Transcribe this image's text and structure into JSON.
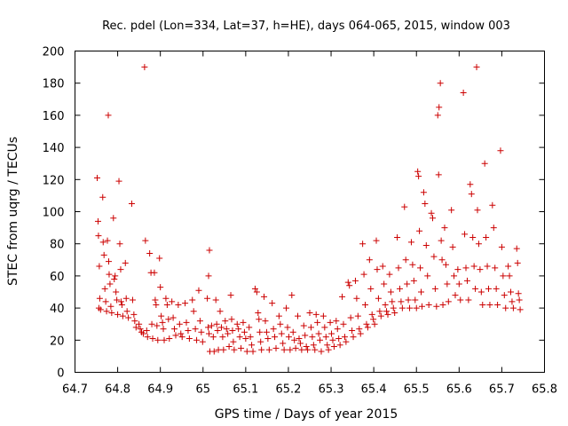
{
  "chart_data": {
    "type": "scatter",
    "title": "Rec. pdel (Lon=334, Lat=37, h=HE), days 064-065, 2015, window 003",
    "xlabel": "GPS time / Days of year 2015",
    "ylabel": "STEC from uqrg / TECUs",
    "xlim": [
      64.7,
      65.8
    ],
    "ylim": [
      0,
      200
    ],
    "xticks": [
      "64.7",
      "64.8",
      "64.9",
      "65",
      "65.1",
      "65.2",
      "65.3",
      "65.4",
      "65.5",
      "65.6",
      "65.7",
      "65.8"
    ],
    "yticks": [
      "0",
      "20",
      "40",
      "60",
      "80",
      "100",
      "120",
      "140",
      "160",
      "180",
      "200"
    ],
    "grid": false,
    "marker": "plus",
    "color": "#cc0000",
    "series": [
      {
        "values": [
          [
            64.752,
            121
          ],
          [
            64.754,
            94
          ],
          [
            64.755,
            85
          ],
          [
            64.757,
            66
          ],
          [
            64.758,
            46
          ],
          [
            64.756,
            40
          ],
          [
            64.76,
            39
          ],
          [
            64.765,
            109
          ],
          [
            64.766,
            81
          ],
          [
            64.768,
            73
          ],
          [
            64.77,
            52
          ],
          [
            64.772,
            44
          ],
          [
            64.774,
            38
          ],
          [
            64.778,
            160
          ],
          [
            64.776,
            82
          ],
          [
            64.779,
            69
          ],
          [
            64.78,
            61
          ],
          [
            64.782,
            55
          ],
          [
            64.784,
            41
          ],
          [
            64.786,
            37
          ],
          [
            64.79,
            96
          ],
          [
            64.792,
            58
          ],
          [
            64.794,
            60
          ],
          [
            64.796,
            50
          ],
          [
            64.798,
            45
          ],
          [
            64.8,
            36
          ],
          [
            64.803,
            119
          ],
          [
            64.805,
            80
          ],
          [
            64.807,
            64
          ],
          [
            64.808,
            44
          ],
          [
            64.81,
            42
          ],
          [
            64.812,
            35
          ],
          [
            64.818,
            68
          ],
          [
            64.82,
            46
          ],
          [
            64.822,
            38
          ],
          [
            64.825,
            34
          ],
          [
            64.833,
            105
          ],
          [
            64.835,
            45
          ],
          [
            64.838,
            36
          ],
          [
            64.84,
            32
          ],
          [
            64.843,
            28
          ],
          [
            64.85,
            30
          ],
          [
            64.853,
            27
          ],
          [
            64.856,
            25
          ],
          [
            64.86,
            24
          ],
          [
            64.863,
            190
          ],
          [
            64.865,
            82
          ],
          [
            64.868,
            26
          ],
          [
            64.87,
            22
          ],
          [
            64.875,
            74
          ],
          [
            64.878,
            62
          ],
          [
            64.88,
            30
          ],
          [
            64.882,
            21
          ],
          [
            64.886,
            62
          ],
          [
            64.888,
            45
          ],
          [
            64.89,
            42
          ],
          [
            64.892,
            29
          ],
          [
            64.894,
            20
          ],
          [
            64.898,
            71
          ],
          [
            64.9,
            53
          ],
          [
            64.902,
            35
          ],
          [
            64.905,
            31
          ],
          [
            64.907,
            27
          ],
          [
            64.909,
            20
          ],
          [
            64.913,
            46
          ],
          [
            64.916,
            42
          ],
          [
            64.919,
            33
          ],
          [
            64.921,
            21
          ],
          [
            64.927,
            44
          ],
          [
            64.93,
            34
          ],
          [
            64.933,
            27
          ],
          [
            64.936,
            23
          ],
          [
            64.942,
            42
          ],
          [
            64.945,
            30
          ],
          [
            64.948,
            24
          ],
          [
            64.951,
            22
          ],
          [
            64.958,
            43
          ],
          [
            64.961,
            31
          ],
          [
            64.965,
            26
          ],
          [
            64.968,
            21
          ],
          [
            64.975,
            45
          ],
          [
            64.978,
            38
          ],
          [
            64.982,
            27
          ],
          [
            64.985,
            20
          ],
          [
            64.99,
            51
          ],
          [
            64.993,
            32
          ],
          [
            64.996,
            25
          ],
          [
            64.999,
            19
          ],
          [
            65.015,
            76
          ],
          [
            65.013,
            60
          ],
          [
            65.01,
            46
          ],
          [
            65.012,
            28
          ],
          [
            65.014,
            24
          ],
          [
            65.016,
            13
          ],
          [
            65.02,
            29
          ],
          [
            65.024,
            22
          ],
          [
            65.026,
            13
          ],
          [
            65.03,
            45
          ],
          [
            65.032,
            30
          ],
          [
            65.034,
            26
          ],
          [
            65.036,
            14
          ],
          [
            65.04,
            38
          ],
          [
            65.043,
            28
          ],
          [
            65.046,
            22
          ],
          [
            65.048,
            14
          ],
          [
            65.052,
            32
          ],
          [
            65.055,
            27
          ],
          [
            65.058,
            24
          ],
          [
            65.061,
            16
          ],
          [
            65.065,
            48
          ],
          [
            65.067,
            33
          ],
          [
            65.069,
            26
          ],
          [
            65.071,
            19
          ],
          [
            65.073,
            14
          ],
          [
            65.08,
            30
          ],
          [
            65.083,
            27
          ],
          [
            65.086,
            22
          ],
          [
            65.089,
            15
          ],
          [
            65.094,
            31
          ],
          [
            65.097,
            25
          ],
          [
            65.1,
            21
          ],
          [
            65.103,
            13
          ],
          [
            65.108,
            28
          ],
          [
            65.111,
            22
          ],
          [
            65.114,
            17
          ],
          [
            65.117,
            13
          ],
          [
            65.122,
            52
          ],
          [
            65.126,
            50
          ],
          [
            65.129,
            37
          ],
          [
            65.131,
            33
          ],
          [
            65.133,
            25
          ],
          [
            65.135,
            19
          ],
          [
            65.137,
            14
          ],
          [
            65.143,
            47
          ],
          [
            65.146,
            32
          ],
          [
            65.149,
            25
          ],
          [
            65.152,
            21
          ],
          [
            65.155,
            14
          ],
          [
            65.162,
            43
          ],
          [
            65.165,
            27
          ],
          [
            65.168,
            22
          ],
          [
            65.171,
            15
          ],
          [
            65.178,
            35
          ],
          [
            65.181,
            30
          ],
          [
            65.184,
            24
          ],
          [
            65.187,
            18
          ],
          [
            65.19,
            14
          ],
          [
            65.195,
            40
          ],
          [
            65.198,
            28
          ],
          [
            65.201,
            22
          ],
          [
            65.204,
            14
          ],
          [
            65.208,
            48
          ],
          [
            65.211,
            25
          ],
          [
            65.214,
            20
          ],
          [
            65.217,
            15
          ],
          [
            65.222,
            35
          ],
          [
            65.225,
            21
          ],
          [
            65.228,
            18
          ],
          [
            65.231,
            14
          ],
          [
            65.236,
            29
          ],
          [
            65.239,
            23
          ],
          [
            65.242,
            16
          ],
          [
            65.245,
            14
          ],
          [
            65.25,
            37
          ],
          [
            65.253,
            28
          ],
          [
            65.256,
            22
          ],
          [
            65.259,
            17
          ],
          [
            65.262,
            14
          ],
          [
            65.265,
            36
          ],
          [
            65.268,
            31
          ],
          [
            65.271,
            24
          ],
          [
            65.274,
            20
          ],
          [
            65.277,
            13
          ],
          [
            65.282,
            35
          ],
          [
            65.285,
            28
          ],
          [
            65.288,
            22
          ],
          [
            65.291,
            17
          ],
          [
            65.294,
            14
          ],
          [
            65.298,
            31
          ],
          [
            65.301,
            24
          ],
          [
            65.304,
            20
          ],
          [
            65.307,
            16
          ],
          [
            65.312,
            32
          ],
          [
            65.315,
            27
          ],
          [
            65.318,
            21
          ],
          [
            65.321,
            17
          ],
          [
            65.326,
            47
          ],
          [
            65.329,
            30
          ],
          [
            65.332,
            22
          ],
          [
            65.335,
            19
          ],
          [
            65.34,
            56
          ],
          [
            65.343,
            54
          ],
          [
            65.346,
            34
          ],
          [
            65.349,
            26
          ],
          [
            65.352,
            22
          ],
          [
            65.357,
            57
          ],
          [
            65.36,
            46
          ],
          [
            65.363,
            35
          ],
          [
            65.366,
            27
          ],
          [
            65.369,
            24
          ],
          [
            65.374,
            80
          ],
          [
            65.377,
            61
          ],
          [
            65.38,
            42
          ],
          [
            65.383,
            30
          ],
          [
            65.386,
            28
          ],
          [
            65.39,
            70
          ],
          [
            65.393,
            52
          ],
          [
            65.396,
            36
          ],
          [
            65.399,
            33
          ],
          [
            65.402,
            30
          ],
          [
            65.406,
            82
          ],
          [
            65.408,
            64
          ],
          [
            65.411,
            46
          ],
          [
            65.414,
            38
          ],
          [
            65.417,
            35
          ],
          [
            65.421,
            66
          ],
          [
            65.424,
            55
          ],
          [
            65.427,
            42
          ],
          [
            65.43,
            38
          ],
          [
            65.433,
            36
          ],
          [
            65.437,
            61
          ],
          [
            65.44,
            50
          ],
          [
            65.443,
            44
          ],
          [
            65.446,
            40
          ],
          [
            65.449,
            37
          ],
          [
            65.455,
            84
          ],
          [
            65.458,
            65
          ],
          [
            65.461,
            52
          ],
          [
            65.464,
            44
          ],
          [
            65.467,
            40
          ],
          [
            65.472,
            103
          ],
          [
            65.475,
            70
          ],
          [
            65.478,
            55
          ],
          [
            65.481,
            45
          ],
          [
            65.484,
            40
          ],
          [
            65.488,
            81
          ],
          [
            65.491,
            67
          ],
          [
            65.494,
            57
          ],
          [
            65.497,
            45
          ],
          [
            65.5,
            40
          ],
          [
            65.503,
            125
          ],
          [
            65.505,
            122
          ],
          [
            65.507,
            88
          ],
          [
            65.509,
            65
          ],
          [
            65.511,
            50
          ],
          [
            65.513,
            41
          ],
          [
            65.517,
            112
          ],
          [
            65.52,
            105
          ],
          [
            65.523,
            79
          ],
          [
            65.526,
            60
          ],
          [
            65.529,
            42
          ],
          [
            65.535,
            99
          ],
          [
            65.538,
            96
          ],
          [
            65.541,
            72
          ],
          [
            65.544,
            52
          ],
          [
            65.547,
            41
          ],
          [
            65.55,
            160
          ],
          [
            65.553,
            165
          ],
          [
            65.556,
            180
          ],
          [
            65.552,
            123
          ],
          [
            65.558,
            82
          ],
          [
            65.56,
            70
          ],
          [
            65.562,
            42
          ],
          [
            65.566,
            90
          ],
          [
            65.569,
            67
          ],
          [
            65.572,
            55
          ],
          [
            65.575,
            44
          ],
          [
            65.582,
            101
          ],
          [
            65.585,
            78
          ],
          [
            65.588,
            60
          ],
          [
            65.591,
            48
          ],
          [
            65.597,
            64
          ],
          [
            65.6,
            55
          ],
          [
            65.603,
            45
          ],
          [
            65.61,
            174
          ],
          [
            65.613,
            86
          ],
          [
            65.616,
            65
          ],
          [
            65.619,
            57
          ],
          [
            65.622,
            45
          ],
          [
            65.626,
            117
          ],
          [
            65.629,
            111
          ],
          [
            65.632,
            84
          ],
          [
            65.635,
            66
          ],
          [
            65.638,
            52
          ],
          [
            65.641,
            190
          ],
          [
            65.643,
            101
          ],
          [
            65.646,
            80
          ],
          [
            65.649,
            64
          ],
          [
            65.652,
            50
          ],
          [
            65.655,
            42
          ],
          [
            65.66,
            130
          ],
          [
            65.663,
            84
          ],
          [
            65.666,
            66
          ],
          [
            65.669,
            52
          ],
          [
            65.672,
            42
          ],
          [
            65.678,
            104
          ],
          [
            65.681,
            90
          ],
          [
            65.684,
            65
          ],
          [
            65.687,
            52
          ],
          [
            65.69,
            42
          ],
          [
            65.697,
            138
          ],
          [
            65.7,
            78
          ],
          [
            65.703,
            60
          ],
          [
            65.706,
            48
          ],
          [
            65.709,
            40
          ],
          [
            65.715,
            66
          ],
          [
            65.718,
            60
          ],
          [
            65.721,
            50
          ],
          [
            65.724,
            44
          ],
          [
            65.727,
            40
          ],
          [
            65.735,
            77
          ],
          [
            65.737,
            68
          ],
          [
            65.739,
            49
          ],
          [
            65.741,
            45
          ],
          [
            65.743,
            39
          ]
        ]
      }
    ]
  }
}
